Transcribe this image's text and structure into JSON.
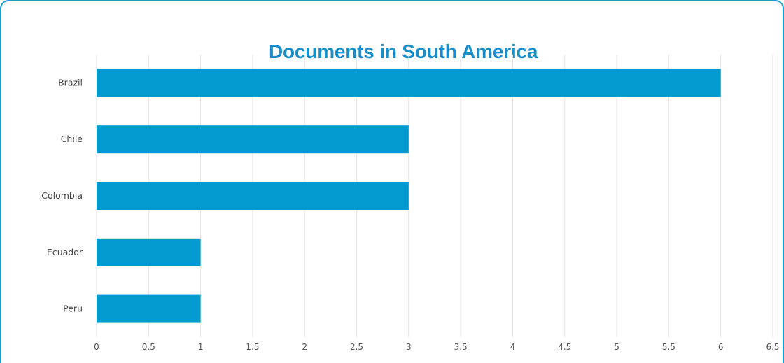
{
  "chart_data": {
    "type": "bar",
    "orientation": "horizontal",
    "title": "Documents in South America",
    "categories": [
      "Brazil",
      "Chile",
      "Colombia",
      "Ecuador",
      "Peru"
    ],
    "values": [
      6,
      3,
      3,
      1,
      1
    ],
    "xlim": [
      0,
      6.5
    ],
    "x_ticks": [
      "0",
      "0.5",
      "1",
      "1.5",
      "2",
      "2.5",
      "3",
      "3.5",
      "4",
      "4.5",
      "5",
      "5.5",
      "6",
      "6.5"
    ],
    "xlabel": "",
    "ylabel": "",
    "grid": true,
    "legend": "none",
    "colors": {
      "bar": "#039bcf",
      "title": "#1a8ec9",
      "border": "#1b9bc9",
      "grid": "#e3e3e3"
    }
  }
}
